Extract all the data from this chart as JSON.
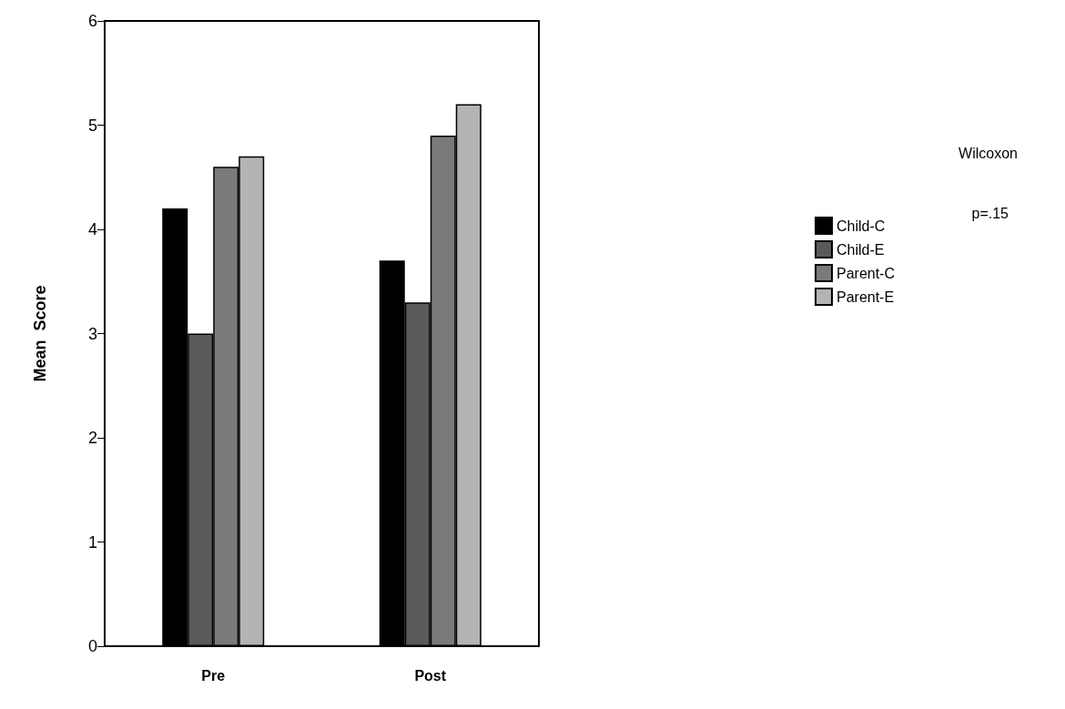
{
  "chart_data": {
    "type": "bar",
    "ylabel": "Mean  Score",
    "categories": [
      "Pre",
      "Post"
    ],
    "series": [
      {
        "name": "Child-C",
        "color": "#000000",
        "values": [
          4.2,
          3.7
        ]
      },
      {
        "name": "Child-E",
        "color": "#5a5a5a",
        "values": [
          3.0,
          3.3
        ]
      },
      {
        "name": "Parent-C",
        "color": "#7a7a7a",
        "values": [
          4.6,
          4.9
        ]
      },
      {
        "name": "Parent-E",
        "color": "#b4b4b4",
        "values": [
          4.7,
          5.2
        ]
      }
    ],
    "ylim": [
      0,
      6
    ],
    "yticks": [
      0,
      1,
      2,
      3,
      4,
      5,
      6
    ],
    "grid": false,
    "legend": "right",
    "annotations": [
      "Wilcoxon",
      "p=.15"
    ]
  }
}
